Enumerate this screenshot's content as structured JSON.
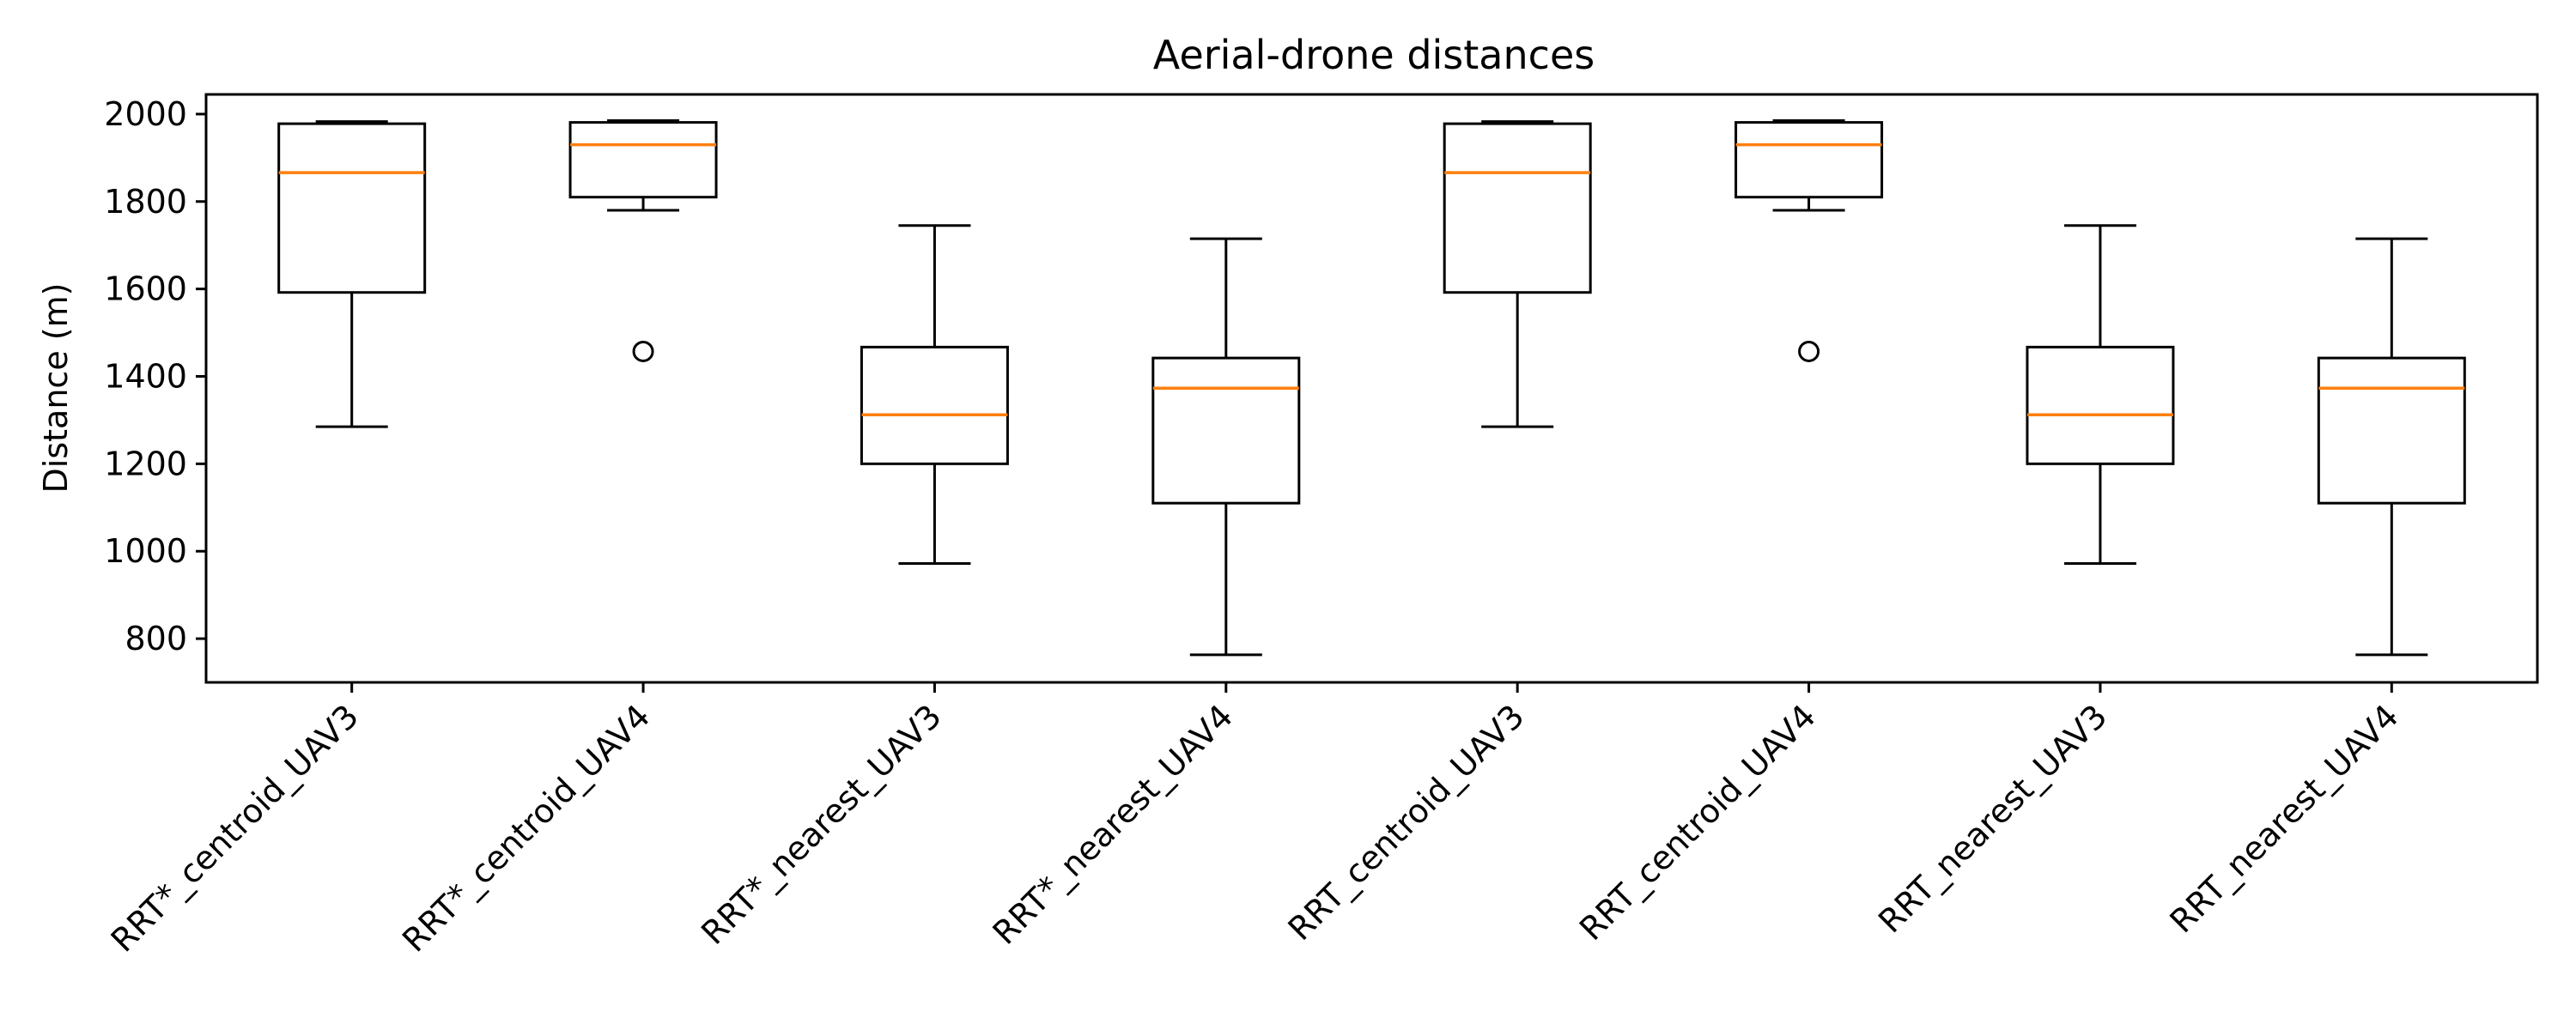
{
  "chart_data": {
    "type": "boxplot",
    "title": "Aerial-drone distances",
    "xlabel": "",
    "ylabel": "Distance (m)",
    "ylim": [
      700,
      2045
    ],
    "yticks": [
      800,
      1000,
      1200,
      1400,
      1600,
      1800,
      2000
    ],
    "grid": false,
    "colors": {
      "box": "#000000",
      "median": "#ff7f0e",
      "axes": "#000000"
    },
    "categories": [
      "RRT*_centroid_UAV3",
      "RRT*_centroid_UAV4",
      "RRT*_nearest_UAV3",
      "RRT*_nearest_UAV4",
      "RRT_centroid_UAV3",
      "RRT_centroid_UAV4",
      "RRT_nearest_UAV3",
      "RRT_nearest_UAV4"
    ],
    "boxes": [
      {
        "whisker_low": 1285,
        "q1": 1592,
        "median": 1866,
        "q3": 1978,
        "whisker_high": 1983,
        "outliers": []
      },
      {
        "whisker_low": 1780,
        "q1": 1810,
        "median": 1930,
        "q3": 1981,
        "whisker_high": 1985,
        "outliers": [
          1457
        ]
      },
      {
        "whisker_low": 972,
        "q1": 1200,
        "median": 1312,
        "q3": 1467,
        "whisker_high": 1745,
        "outliers": []
      },
      {
        "whisker_low": 763,
        "q1": 1110,
        "median": 1373,
        "q3": 1442,
        "whisker_high": 1715,
        "outliers": []
      },
      {
        "whisker_low": 1285,
        "q1": 1592,
        "median": 1866,
        "q3": 1978,
        "whisker_high": 1983,
        "outliers": []
      },
      {
        "whisker_low": 1780,
        "q1": 1810,
        "median": 1930,
        "q3": 1981,
        "whisker_high": 1985,
        "outliers": [
          1457
        ]
      },
      {
        "whisker_low": 972,
        "q1": 1200,
        "median": 1312,
        "q3": 1467,
        "whisker_high": 1745,
        "outliers": []
      },
      {
        "whisker_low": 763,
        "q1": 1110,
        "median": 1373,
        "q3": 1442,
        "whisker_high": 1715,
        "outliers": []
      }
    ]
  }
}
